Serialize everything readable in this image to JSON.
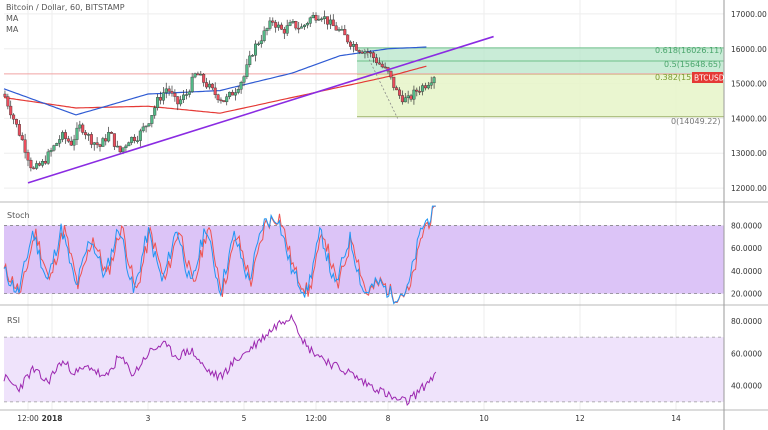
{
  "header": {
    "symbol_line": "Bitcoin / Dollar, 60, BITSTAMP",
    "indicator_1": "MA",
    "indicator_2": "MA"
  },
  "colors": {
    "price_up": "#53b987",
    "price_down": "#eb4d5c",
    "ma_fast": "#2f5bd3",
    "ma_slow": "#e53935",
    "trendline": "#8a2be2",
    "fib_green": "#b7e6c9",
    "fib_light": "#e6f4c8",
    "stoch_bg": "#dcc4f7",
    "rsi_bg": "#efe3fb",
    "stoch_k": "#2196f3",
    "stoch_d": "#ef5350",
    "rsi_line": "#9c27b0",
    "price_tag": "#e53935"
  },
  "price_tag": {
    "label": "BTCUSD"
  },
  "fibonacci": [
    {
      "level": "0.618",
      "value": "16026.11",
      "label": "0.618(16026.11)"
    },
    {
      "level": "0.5",
      "value": "15648.65",
      "label": "0.5(15648.65)"
    },
    {
      "level": "0.382",
      "value": "15271.19",
      "label": "0.382(15"
    },
    {
      "level": "0",
      "value": "14049.22",
      "label": "0(14049.22)"
    }
  ],
  "panes": {
    "stoch": {
      "label": "Stoch"
    },
    "rsi": {
      "label": "RSI"
    }
  },
  "chart_data": [
    {
      "type": "line",
      "pane": "price",
      "title": "Bitcoin / Dollar, 60, BITSTAMP",
      "yticks": [
        "12000.00",
        "13000.00",
        "14000.00",
        "15000.00",
        "16000.00",
        "17000.00"
      ],
      "ylim": [
        11600,
        17400
      ],
      "xticks": [
        "12:00",
        "2018",
        "3",
        "5",
        "12:00",
        "8",
        "10",
        "12",
        "14"
      ],
      "x_tick_units": [
        0.5,
        1,
        3,
        5,
        6.5,
        8,
        10,
        12,
        14
      ],
      "x_range": [
        0,
        15.0
      ],
      "approx_close": [
        [
          0.0,
          14700
        ],
        [
          0.2,
          14000
        ],
        [
          0.4,
          13300
        ],
        [
          0.6,
          12500
        ],
        [
          0.8,
          12700
        ],
        [
          1.0,
          13100
        ],
        [
          1.2,
          13500
        ],
        [
          1.4,
          13300
        ],
        [
          1.6,
          13800
        ],
        [
          1.8,
          13400
        ],
        [
          2.0,
          13200
        ],
        [
          2.2,
          13600
        ],
        [
          2.4,
          13000
        ],
        [
          2.6,
          13400
        ],
        [
          2.8,
          13500
        ],
        [
          3.0,
          13900
        ],
        [
          3.2,
          14500
        ],
        [
          3.4,
          14900
        ],
        [
          3.6,
          14400
        ],
        [
          3.8,
          14700
        ],
        [
          4.0,
          15300
        ],
        [
          4.2,
          15000
        ],
        [
          4.4,
          14700
        ],
        [
          4.6,
          14500
        ],
        [
          4.8,
          14800
        ],
        [
          5.0,
          15200
        ],
        [
          5.2,
          16000
        ],
        [
          5.4,
          16400
        ],
        [
          5.6,
          16800
        ],
        [
          5.8,
          16500
        ],
        [
          6.0,
          16700
        ],
        [
          6.2,
          16600
        ],
        [
          6.4,
          16900
        ],
        [
          6.6,
          17000
        ],
        [
          6.8,
          16700
        ],
        [
          7.0,
          16500
        ],
        [
          7.2,
          16200
        ],
        [
          7.4,
          16000
        ],
        [
          7.6,
          15900
        ],
        [
          7.8,
          15600
        ],
        [
          8.0,
          15300
        ],
        [
          8.2,
          14700
        ],
        [
          8.4,
          14500
        ],
        [
          8.6,
          14800
        ],
        [
          8.8,
          15000
        ],
        [
          9.0,
          15300
        ]
      ],
      "ma_fast_approx": [
        [
          0,
          14850
        ],
        [
          1.5,
          14100
        ],
        [
          3,
          14700
        ],
        [
          4.5,
          14800
        ],
        [
          6,
          15300
        ],
        [
          7,
          15800
        ],
        [
          8,
          16000
        ],
        [
          8.8,
          16050
        ]
      ],
      "ma_slow_approx": [
        [
          0,
          14600
        ],
        [
          1.5,
          14300
        ],
        [
          3,
          14350
        ],
        [
          4.5,
          14150
        ],
        [
          6,
          14600
        ],
        [
          7,
          14900
        ],
        [
          8,
          15200
        ],
        [
          8.8,
          15500
        ]
      ],
      "trendline": [
        [
          0.5,
          12150
        ],
        [
          10.2,
          16350
        ]
      ]
    },
    {
      "type": "line",
      "pane": "stoch",
      "yticks": [
        "20.0000",
        "40.0000",
        "60.0000",
        "80.0000"
      ],
      "ylim": [
        10,
        98
      ],
      "band": [
        20,
        80
      ],
      "approx_k": [
        [
          0.0,
          40
        ],
        [
          0.3,
          20
        ],
        [
          0.6,
          75
        ],
        [
          0.9,
          30
        ],
        [
          1.2,
          78
        ],
        [
          1.5,
          25
        ],
        [
          1.8,
          70
        ],
        [
          2.1,
          35
        ],
        [
          2.4,
          80
        ],
        [
          2.7,
          20
        ],
        [
          3.0,
          75
        ],
        [
          3.3,
          30
        ],
        [
          3.6,
          78
        ],
        [
          3.9,
          25
        ],
        [
          4.2,
          80
        ],
        [
          4.5,
          22
        ],
        [
          4.8,
          72
        ],
        [
          5.1,
          30
        ],
        [
          5.4,
          82
        ],
        [
          5.7,
          88
        ],
        [
          6.0,
          40
        ],
        [
          6.3,
          20
        ],
        [
          6.6,
          75
        ],
        [
          6.9,
          25
        ],
        [
          7.2,
          70
        ],
        [
          7.5,
          20
        ],
        [
          7.8,
          30
        ],
        [
          8.1,
          18
        ],
        [
          8.4,
          22
        ],
        [
          8.7,
          78
        ],
        [
          9.0,
          95
        ]
      ]
    },
    {
      "type": "line",
      "pane": "rsi",
      "yticks": [
        "40.0000",
        "60.0000",
        "80.0000"
      ],
      "ylim": [
        25,
        88
      ],
      "band": [
        30,
        70
      ],
      "approx_rsi": [
        [
          0.0,
          45
        ],
        [
          0.3,
          38
        ],
        [
          0.6,
          50
        ],
        [
          0.9,
          42
        ],
        [
          1.2,
          55
        ],
        [
          1.5,
          48
        ],
        [
          1.8,
          52
        ],
        [
          2.1,
          44
        ],
        [
          2.4,
          58
        ],
        [
          2.7,
          47
        ],
        [
          3.0,
          60
        ],
        [
          3.3,
          66
        ],
        [
          3.6,
          58
        ],
        [
          3.9,
          62
        ],
        [
          4.2,
          50
        ],
        [
          4.5,
          45
        ],
        [
          4.8,
          55
        ],
        [
          5.1,
          62
        ],
        [
          5.4,
          70
        ],
        [
          5.7,
          78
        ],
        [
          6.0,
          84
        ],
        [
          6.3,
          64
        ],
        [
          6.6,
          58
        ],
        [
          6.9,
          52
        ],
        [
          7.2,
          48
        ],
        [
          7.5,
          42
        ],
        [
          7.8,
          38
        ],
        [
          8.1,
          32
        ],
        [
          8.4,
          30
        ],
        [
          8.7,
          38
        ],
        [
          9.0,
          48
        ]
      ]
    }
  ]
}
